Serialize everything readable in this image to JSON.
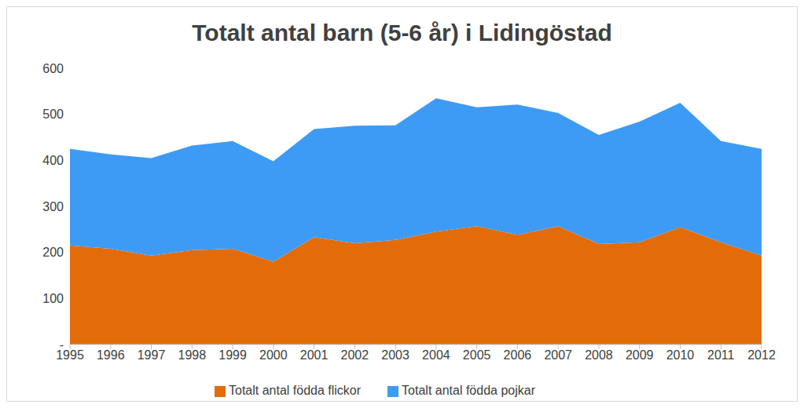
{
  "chart_data": {
    "type": "area",
    "title": "Totalt antal barn (5-6 år) i Lidingöstad",
    "categories": [
      "1995",
      "1996",
      "1997",
      "1998",
      "1999",
      "2000",
      "2001",
      "2002",
      "2003",
      "2004",
      "2005",
      "2006",
      "2007",
      "2008",
      "2009",
      "2010",
      "2011",
      "2012"
    ],
    "series": [
      {
        "name": "Totalt antal födda flickor",
        "color": "#e36c0a",
        "values": [
          215,
          208,
          193,
          205,
          208,
          180,
          233,
          220,
          227,
          245,
          257,
          238,
          257,
          218,
          222,
          255,
          222,
          193
        ]
      },
      {
        "name": "Totalt antal födda pojkar",
        "color": "#3d9bf5",
        "values": [
          210,
          205,
          212,
          227,
          234,
          218,
          235,
          255,
          249,
          290,
          258,
          283,
          246,
          237,
          262,
          270,
          220,
          232
        ]
      }
    ],
    "ylim": [
      0,
      600
    ],
    "yticks": [
      {
        "value": 0,
        "label": "-"
      },
      100,
      200,
      300,
      400,
      500,
      600
    ],
    "stacked": true,
    "legend": "bottom",
    "grid": false
  }
}
